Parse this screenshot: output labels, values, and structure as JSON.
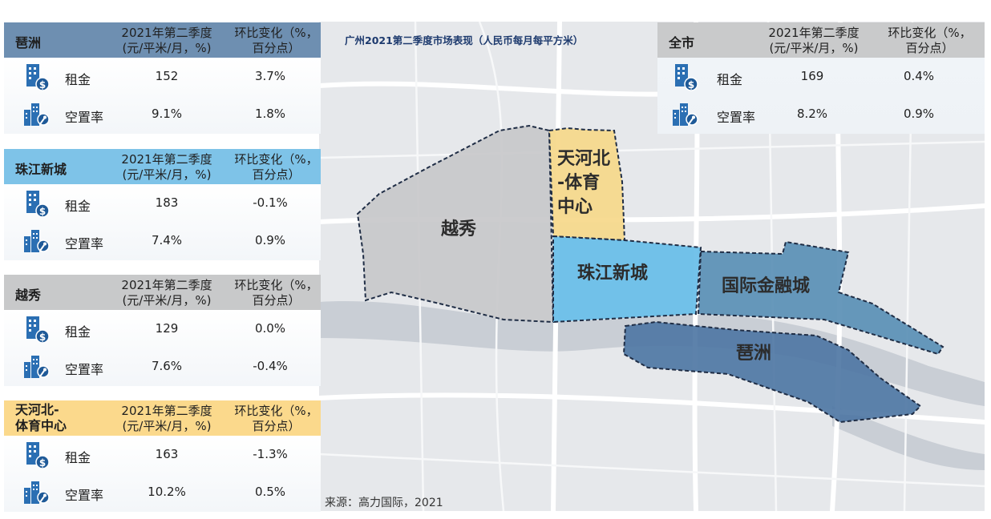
{
  "map": {
    "title": "广州2021第二季度市场表现（人民币每月每平方米）",
    "source": "来源：高力国际，2021",
    "districts": {
      "yuexiu": "越秀",
      "tianhe_line1": "天河北",
      "tianhe_line2": "-体育",
      "tianhe_line3": "中心",
      "zhujiang": "珠江新城",
      "ifc": "国际金融城",
      "pazhou": "琶洲"
    },
    "colors": {
      "yuexiu": "#c8c8ca",
      "tianhe": "#f6d88a",
      "zhujiang": "#67bde8",
      "ifc": "#5a8fb5",
      "pazhou": "#4f77a4"
    }
  },
  "panels": {
    "pazhou": {
      "name": "琶洲",
      "col1_line1": "2021年第二季度",
      "col1_line2": "(元/平米/月，%)",
      "col2_line1": "环比变化（%，",
      "col2_line2": "百分点）",
      "rent_label": "租金",
      "rent_value": "152",
      "rent_change": "3.7%",
      "vacancy_label": "空置率",
      "vacancy_value": "9.1%",
      "vacancy_change": "1.8%"
    },
    "zhujiang": {
      "name": "珠江新城",
      "col1_line1": "2021年第二季度",
      "col1_line2": "(元/平米/月，%)",
      "col2_line1": "环比变化（%，",
      "col2_line2": "百分点）",
      "rent_label": "租金",
      "rent_value": "183",
      "rent_change": "-0.1%",
      "vacancy_label": "空置率",
      "vacancy_value": "7.4%",
      "vacancy_change": "0.9%"
    },
    "yuexiu": {
      "name": "越秀",
      "col1_line1": "2021年第二季度",
      "col1_line2": "(元/平米/月，%)",
      "col2_line1": "环比变化（%，",
      "col2_line2": "百分点）",
      "rent_label": "租金",
      "rent_value": "129",
      "rent_change": "0.0%",
      "vacancy_label": "空置率",
      "vacancy_value": "7.6%",
      "vacancy_change": "-0.4%"
    },
    "tianhe": {
      "name_line1": "天河北-",
      "name_line2": "体育中心",
      "col1_line1": "2021年第二季度",
      "col1_line2": "(元/平米/月，%)",
      "col2_line1": "环比变化（%，",
      "col2_line2": "百分点）",
      "rent_label": "租金",
      "rent_value": "163",
      "rent_change": "-1.3%",
      "vacancy_label": "空置率",
      "vacancy_value": "10.2%",
      "vacancy_change": "0.5%"
    },
    "city": {
      "name": "全市",
      "col1_line1": "2021年第二季度",
      "col1_line2": "(元/平米/月，%)",
      "col2_line1": "环比变化（%，",
      "col2_line2": "百分点）",
      "rent_label": "租金",
      "rent_value": "169",
      "rent_change": "0.4%",
      "vacancy_label": "空置率",
      "vacancy_value": "8.2%",
      "vacancy_change": "0.9%"
    }
  },
  "icons": {
    "rent": "building-dollar-icon",
    "vacancy": "building-key-icon",
    "icon_color": "#2b6fb3"
  }
}
